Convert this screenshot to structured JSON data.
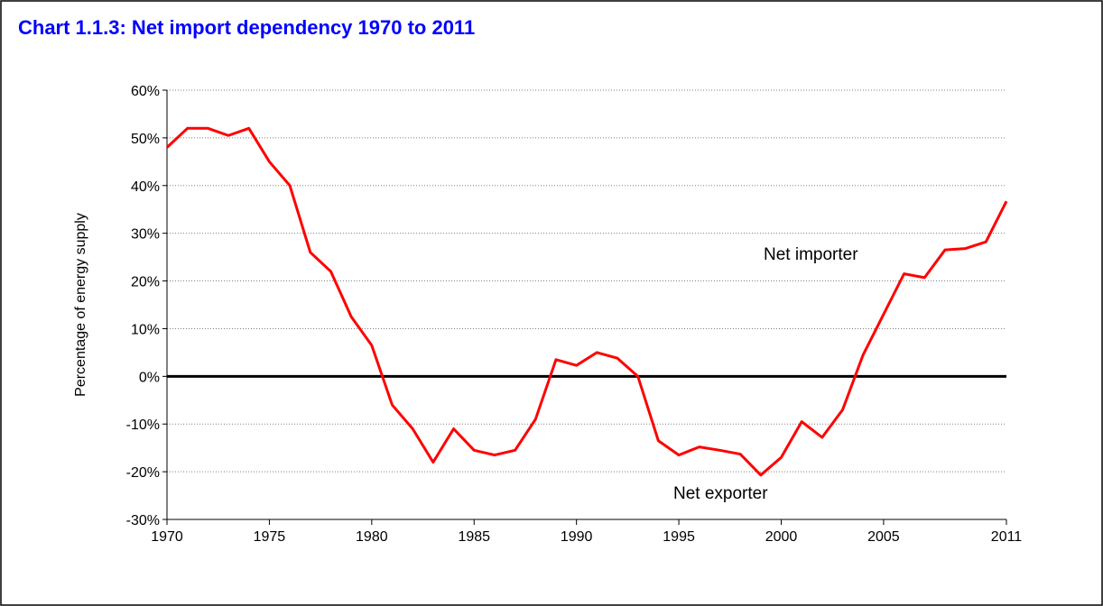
{
  "chart_data": {
    "type": "line",
    "title": "Chart 1.1.3:   Net import dependency 1970 to 2011",
    "ylabel": "Percentage of energy supply",
    "annotations": [
      "Net importer",
      "Net exporter"
    ],
    "x": [
      1970,
      1971,
      1972,
      1973,
      1974,
      1975,
      1976,
      1977,
      1978,
      1979,
      1980,
      1981,
      1982,
      1983,
      1984,
      1985,
      1986,
      1987,
      1988,
      1989,
      1990,
      1991,
      1992,
      1993,
      1994,
      1995,
      1996,
      1997,
      1998,
      1999,
      2000,
      2001,
      2002,
      2003,
      2004,
      2005,
      2006,
      2007,
      2008,
      2009,
      2010,
      2011
    ],
    "series": [
      {
        "name": "Net import dependency",
        "color": "#ff0000",
        "values": [
          48,
          52,
          52,
          50.5,
          52,
          45,
          40,
          26,
          22,
          12.5,
          6.5,
          -6,
          -11,
          -18,
          -11,
          -15.5,
          -16.5,
          -15.5,
          -9,
          3.5,
          2.3,
          5,
          3.8,
          0,
          -13.5,
          -16.5,
          -14.8,
          -15.5,
          -16.3,
          -20.7,
          -17,
          -9.5,
          -12.8,
          -7,
          4.5,
          13,
          21.5,
          20.7,
          26.5,
          26.8,
          28.2,
          36.7
        ]
      }
    ],
    "xlim": [
      1970,
      2011
    ],
    "xticks": [
      1970,
      1975,
      1980,
      1985,
      1990,
      1995,
      2000,
      2005,
      2011
    ],
    "ylim": [
      -30,
      60
    ],
    "yticks": [
      {
        "value": -30,
        "label": "-30%"
      },
      {
        "value": -20,
        "label": "-20%"
      },
      {
        "value": -10,
        "label": "-10%"
      },
      {
        "value": 0,
        "label": "0%"
      },
      {
        "value": 10,
        "label": "10%"
      },
      {
        "value": 20,
        "label": "20%"
      },
      {
        "value": 30,
        "label": "30%"
      },
      {
        "value": 40,
        "label": "40%"
      },
      {
        "value": 50,
        "label": "50%"
      },
      {
        "value": 60,
        "label": "60%"
      }
    ],
    "grid": true,
    "zero_line": true
  }
}
